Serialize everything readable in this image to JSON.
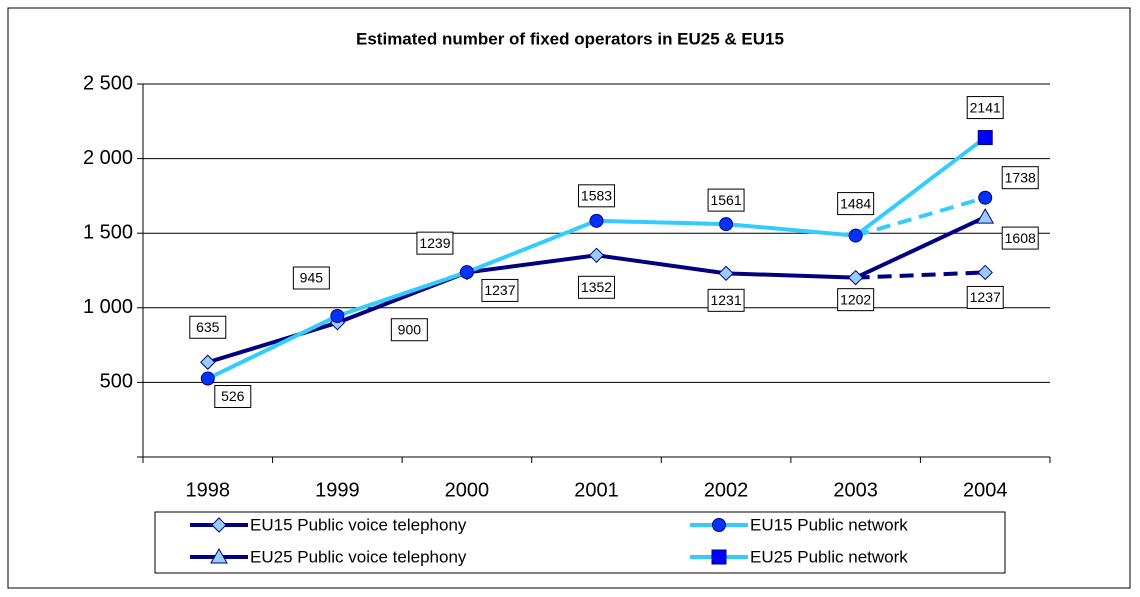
{
  "chart_data": {
    "type": "line",
    "title": "Estimated number of fixed operators in EU25 & EU15",
    "categories": [
      "1998",
      "1999",
      "2000",
      "2001",
      "2002",
      "2003",
      "2004"
    ],
    "series": [
      {
        "name": "EU15 Public voice telephony",
        "color": "#000080",
        "marker": "diamond",
        "marker_color": "#99ccff",
        "linestyle": "dashed-last",
        "values": [
          635,
          900,
          1237,
          1352,
          1231,
          1202,
          1237
        ]
      },
      {
        "name": "EU15 Public network",
        "color": "#33ccff",
        "marker": "circle",
        "marker_color": "#0033ff",
        "linestyle": "dashed-last",
        "values": [
          526,
          945,
          1239,
          1583,
          1561,
          1484,
          1738
        ]
      },
      {
        "name": "EU25 Public voice telephony",
        "color": "#000080",
        "marker": "triangle",
        "marker_color": "#99ccff",
        "linestyle": "solid",
        "values": [
          null,
          null,
          null,
          null,
          null,
          1202,
          1608
        ]
      },
      {
        "name": "EU25 Public network",
        "color": "#33ccff",
        "marker": "square",
        "marker_color": "#0000ff",
        "linestyle": "solid",
        "values": [
          null,
          null,
          null,
          null,
          null,
          1484,
          2141
        ]
      }
    ],
    "ylim": [
      0,
      2500
    ],
    "yticks": [
      0,
      500,
      {
        "value": 1000,
        "label": "1 000"
      },
      {
        "value": 1500,
        "label": "1 500"
      },
      {
        "value": 2000,
        "label": "2 000"
      },
      {
        "value": 2500,
        "label": "2 500"
      }
    ],
    "grid": true,
    "legend": "bottom"
  }
}
